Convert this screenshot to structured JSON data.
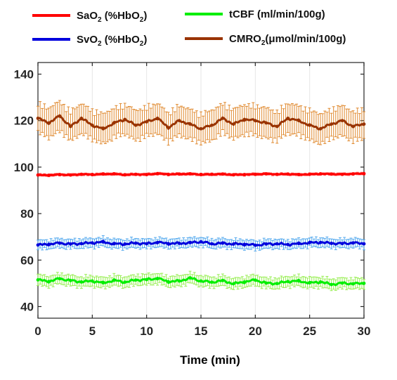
{
  "chart_data": {
    "type": "line",
    "xlabel": "Time (min)",
    "ylabel": "",
    "xlim": [
      0,
      30
    ],
    "ylim": [
      35,
      145
    ],
    "x_ticks": [
      0,
      5,
      10,
      15,
      20,
      25,
      30
    ],
    "y_ticks": [
      40,
      60,
      80,
      100,
      120,
      140
    ],
    "x_tick_labels": [
      "0",
      "5",
      "10",
      "15",
      "20",
      "25",
      "30"
    ],
    "y_tick_labels": [
      "40",
      "60",
      "80",
      "100",
      "120",
      "140"
    ],
    "grid": "vertical",
    "legend_position": "top",
    "x": [
      0,
      1,
      2,
      3,
      4,
      5,
      6,
      7,
      8,
      9,
      10,
      11,
      12,
      13,
      14,
      15,
      16,
      17,
      18,
      19,
      20,
      21,
      22,
      23,
      24,
      25,
      26,
      27,
      28,
      29,
      30
    ],
    "series": [
      {
        "name": "SaO2 (%HbO2)",
        "color": "#ff0000",
        "values": [
          96.6,
          96.5,
          96.8,
          96.6,
          96.9,
          96.8,
          97.0,
          97.1,
          96.7,
          96.9,
          96.8,
          97.2,
          96.9,
          97.0,
          97.1,
          96.8,
          96.9,
          97.0,
          96.7,
          96.8,
          96.9,
          97.1,
          96.9,
          97.0,
          96.8,
          96.9,
          97.1,
          97.0,
          96.9,
          97.1,
          97.2
        ],
        "error": 0.5
      },
      {
        "name": "SvO2 (%HbO2)",
        "color": "#0000dd",
        "values": [
          66.5,
          66.8,
          67.3,
          66.9,
          67.1,
          67.4,
          67.8,
          67.0,
          66.9,
          67.3,
          67.0,
          67.6,
          67.1,
          67.2,
          67.5,
          67.9,
          67.0,
          67.3,
          66.9,
          66.8,
          66.4,
          66.9,
          67.0,
          66.7,
          67.1,
          67.5,
          67.6,
          67.2,
          67.1,
          67.4,
          67.0
        ],
        "error": 2.0
      },
      {
        "name": "tCBF (ml/min/100g)",
        "color": "#00ee00",
        "values": [
          51.5,
          50.8,
          52.0,
          51.2,
          50.6,
          51.0,
          50.2,
          51.3,
          50.5,
          51.4,
          51.6,
          52.1,
          50.7,
          51.0,
          52.3,
          51.0,
          50.5,
          51.2,
          49.8,
          50.6,
          51.4,
          50.1,
          49.9,
          50.8,
          51.0,
          50.2,
          50.6,
          49.5,
          50.1,
          49.8,
          50.0
        ],
        "error": 2.3
      },
      {
        "name": "CMRO2(μmol/min/100g)",
        "color": "#993300",
        "values": [
          121.0,
          119.0,
          122.0,
          117.5,
          121.0,
          118.0,
          116.5,
          119.0,
          120.5,
          118.0,
          119.5,
          121.0,
          117.0,
          120.0,
          118.5,
          116.5,
          118.0,
          121.0,
          118.5,
          120.5,
          120.0,
          119.0,
          117.5,
          121.0,
          120.0,
          118.0,
          116.5,
          118.5,
          120.0,
          117.5,
          118.5
        ],
        "error": 6.5
      }
    ]
  },
  "legend": {
    "entries": [
      {
        "base": "SaO",
        "sub1": "2",
        "mid": " (%HbO",
        "sub2": "2",
        "end": ")",
        "color": "#ff0000"
      },
      {
        "base": "SvO",
        "sub1": "2",
        "mid": " (%HbO",
        "sub2": "2",
        "end": ")",
        "color": "#0000dd"
      },
      {
        "base": "tCBF (ml/min/100g)",
        "sub1": "",
        "mid": "",
        "sub2": "",
        "end": "",
        "color": "#00ee00"
      },
      {
        "base": "CMRO",
        "sub1": "2",
        "mid": "(μmol/min/100g)",
        "sub2": "",
        "end": "",
        "color": "#993300"
      }
    ]
  },
  "colors": {
    "SaO2_band": "#ff6666",
    "SvO2_band": "#55aaee",
    "tCBF_band": "#99ee55",
    "CMRO2_band": "#e08a30",
    "axis": "#262626",
    "grid": "#e6e6e6"
  }
}
